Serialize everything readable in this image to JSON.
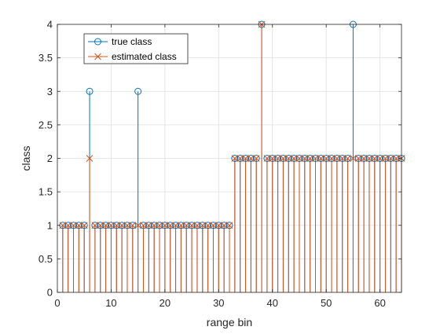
{
  "chart_data": {
    "type": "stem",
    "xlabel": "range bin",
    "ylabel": "class",
    "xlim": [
      0,
      64
    ],
    "ylim": [
      0,
      4
    ],
    "xticks": [
      0,
      10,
      20,
      30,
      40,
      50,
      60
    ],
    "xtick_labels": [
      "0",
      "10",
      "20",
      "30",
      "40",
      "50",
      "60"
    ],
    "yticks": [
      0,
      0.5,
      1,
      1.5,
      2,
      2.5,
      3,
      3.5,
      4
    ],
    "ytick_labels": [
      "0",
      "0.5",
      "1",
      "1.5",
      "2",
      "2.5",
      "3",
      "3.5",
      "4"
    ],
    "grid": true,
    "legend_position": "top-left",
    "x": [
      1,
      2,
      3,
      4,
      5,
      6,
      7,
      8,
      9,
      10,
      11,
      12,
      13,
      14,
      15,
      16,
      17,
      18,
      19,
      20,
      21,
      22,
      23,
      24,
      25,
      26,
      27,
      28,
      29,
      30,
      31,
      32,
      33,
      34,
      35,
      36,
      37,
      38,
      39,
      40,
      41,
      42,
      43,
      44,
      45,
      46,
      47,
      48,
      49,
      50,
      51,
      52,
      53,
      54,
      55,
      56,
      57,
      58,
      59,
      60,
      61,
      62,
      63,
      64
    ],
    "series": [
      {
        "name": "true class",
        "marker": "circle",
        "color": "#0072BD",
        "values": [
          1,
          1,
          1,
          1,
          1,
          3,
          1,
          1,
          1,
          1,
          1,
          1,
          1,
          1,
          3,
          1,
          1,
          1,
          1,
          1,
          1,
          1,
          1,
          1,
          1,
          1,
          1,
          1,
          1,
          1,
          1,
          1,
          2,
          2,
          2,
          2,
          2,
          4,
          2,
          2,
          2,
          2,
          2,
          2,
          2,
          2,
          2,
          2,
          2,
          2,
          2,
          2,
          2,
          2,
          4,
          2,
          2,
          2,
          2,
          2,
          2,
          2,
          2,
          2
        ]
      },
      {
        "name": "estimated class",
        "marker": "x",
        "color": "#D95319",
        "values": [
          1,
          1,
          1,
          1,
          1,
          2,
          1,
          1,
          1,
          1,
          1,
          1,
          1,
          1,
          1,
          1,
          1,
          1,
          1,
          1,
          1,
          1,
          1,
          1,
          1,
          1,
          1,
          1,
          1,
          1,
          1,
          1,
          2,
          2,
          2,
          2,
          2,
          4,
          2,
          2,
          2,
          2,
          2,
          2,
          2,
          2,
          2,
          2,
          2,
          2,
          2,
          2,
          2,
          2,
          2,
          2,
          2,
          2,
          2,
          2,
          2,
          2,
          2,
          2
        ]
      }
    ]
  }
}
